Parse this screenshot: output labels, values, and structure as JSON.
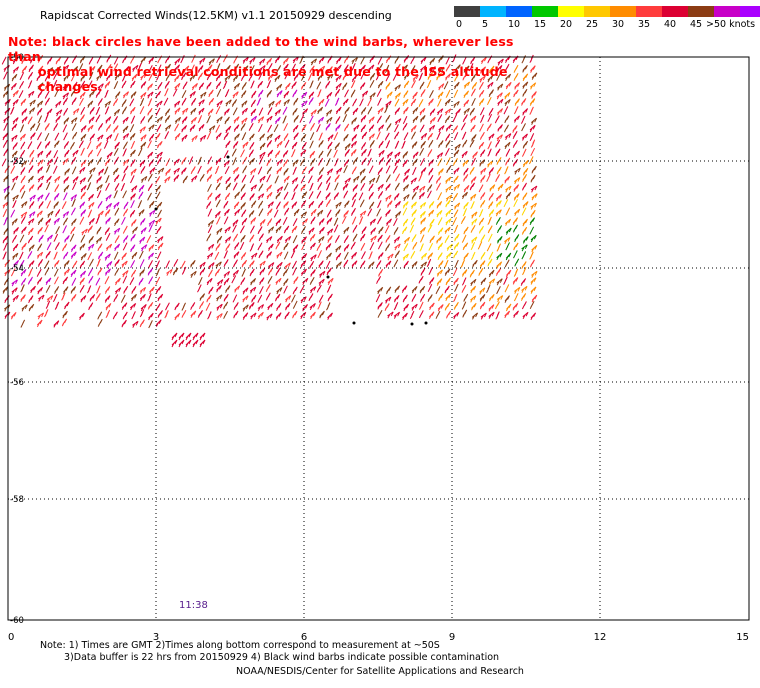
{
  "title": "Rapidscat Corrected Winds(12.5KM) v1.1 20150929 descending",
  "note_line1": "Note: black circles have been added to the wind barbs, wherever less than",
  "note_line2": "optimal wind retrieval conditions are met due to the ISS altitude changes.",
  "legend": {
    "colors": [
      "#404040",
      "#00b4ff",
      "#0064ff",
      "#00c800",
      "#ffff00",
      "#ffc800",
      "#ff8c00",
      "#ff3c3c",
      "#dc0032",
      "#8c3c14",
      "#c800c8",
      "#aa00ff",
      "#50006e"
    ],
    "labels": [
      "0",
      "5",
      "10",
      "15",
      "20",
      "25",
      "30",
      "35",
      "40",
      "45",
      ">50 knots"
    ]
  },
  "axes": {
    "x_ticks": [
      "0",
      "3",
      "6",
      "9",
      "12",
      "15"
    ],
    "y_ticks": [
      "-50",
      "-52",
      "-54",
      "-56",
      "-58",
      "-60"
    ]
  },
  "time_label": "11:38",
  "footer": {
    "line1": "Note: 1) Times are GMT 2)Times along bottom correspond to measurement at ~50S",
    "line2": "3)Data buffer is 22 hrs from 20150929 4) Black wind barbs indicate possible contamination",
    "line3": "NOAA/NESDIS/Center for Satellite Applications and Research"
  }
}
